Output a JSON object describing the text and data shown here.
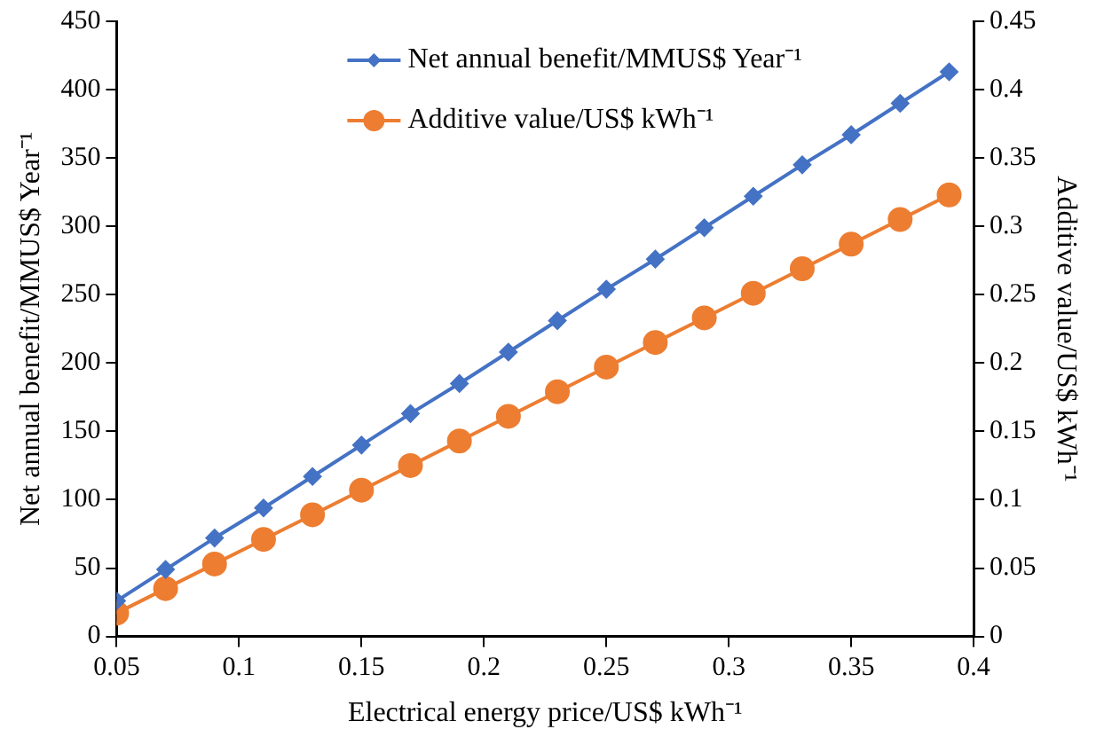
{
  "chart_data": {
    "type": "line",
    "xlabel": "Electrical energy price/US$ kWh⁻¹",
    "ylabel": "Net annual benefit/MMUS$ Year⁻¹",
    "y2label": "Additive value/US$ kWh⁻¹",
    "x": [
      0.05,
      0.07,
      0.09,
      0.11,
      0.13,
      0.15,
      0.17,
      0.19,
      0.21,
      0.23,
      0.25,
      0.27,
      0.29,
      0.31,
      0.33,
      0.35,
      0.37,
      0.39
    ],
    "series": [
      {
        "name": "Net annual benefit/MMUS$ Year⁻¹",
        "color": "#4472c4",
        "marker": "diamond",
        "values": [
          26,
          49,
          72,
          94,
          117,
          140,
          163,
          185,
          208,
          231,
          254,
          276,
          299,
          322,
          345,
          367,
          390,
          413
        ]
      },
      {
        "name": "Additive value/US$ kWh⁻¹",
        "color": "#ed7d31",
        "marker": "circle",
        "axis": "y2",
        "values": [
          0.017,
          0.035,
          0.053,
          0.071,
          0.089,
          0.107,
          0.125,
          0.143,
          0.161,
          0.179,
          0.197,
          0.215,
          0.233,
          0.251,
          0.269,
          0.287,
          0.305,
          0.323
        ]
      }
    ],
    "xlim": [
      0.05,
      0.4
    ],
    "xticks": [
      {
        "value": 0.05,
        "label": "0.05"
      },
      {
        "value": 0.1,
        "label": "0.1"
      },
      {
        "value": 0.15,
        "label": "0.15"
      },
      {
        "value": 0.2,
        "label": "0.2"
      },
      {
        "value": 0.25,
        "label": "0.25"
      },
      {
        "value": 0.3,
        "label": "0.3"
      },
      {
        "value": 0.35,
        "label": "0.35"
      },
      {
        "value": 0.4,
        "label": "0.4"
      }
    ],
    "ylim": [
      0,
      450
    ],
    "yticks": [
      0,
      50,
      100,
      150,
      200,
      250,
      300,
      350,
      400,
      450
    ],
    "y2lim": [
      0,
      0.45
    ],
    "y2ticks": [
      {
        "value": 0,
        "label": "0"
      },
      {
        "value": 0.05,
        "label": "0.05"
      },
      {
        "value": 0.1,
        "label": "0.1"
      },
      {
        "value": 0.15,
        "label": "0.15"
      },
      {
        "value": 0.2,
        "label": "0.2"
      },
      {
        "value": 0.25,
        "label": "0.25"
      },
      {
        "value": 0.3,
        "label": "0.3"
      },
      {
        "value": 0.35,
        "label": "0.35"
      },
      {
        "value": 0.4,
        "label": "0.4"
      },
      {
        "value": 0.45,
        "label": "0.45"
      }
    ],
    "grid": false,
    "legend": "top left",
    "line_style": "solid"
  }
}
